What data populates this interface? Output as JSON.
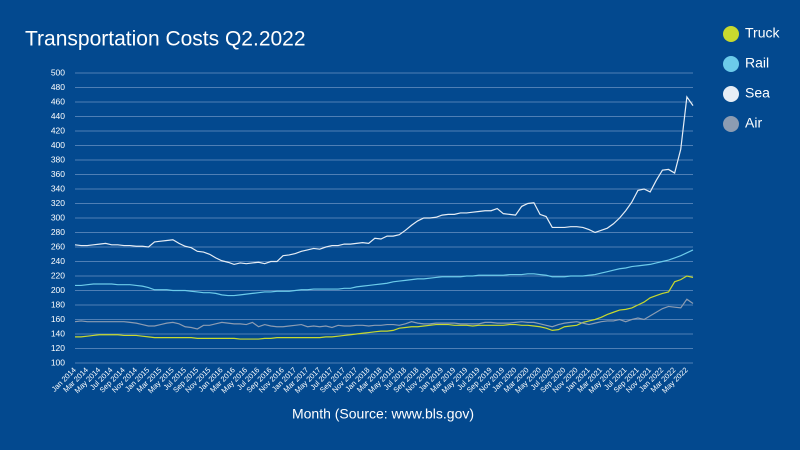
{
  "chart_data": {
    "type": "line",
    "title": "Transportation Costs Q2.2022",
    "x_label": "Month (Source: www.bls.gov)",
    "categories": [
      "Jan 2014",
      null,
      "Mar 2014",
      null,
      "May 2014",
      null,
      "Jul 2014",
      null,
      "Sep 2014",
      null,
      "Nov 2014",
      null,
      "Jan 2015",
      null,
      "Mar 2015",
      null,
      "May 2015",
      null,
      "Jul 2015",
      null,
      "Sep 2015",
      null,
      "Nov 2015",
      null,
      "Jan 2016",
      null,
      "Mar 2016",
      null,
      "May 2016",
      null,
      "Jul 2016",
      null,
      "Sep 2016",
      null,
      "Nov 2016",
      null,
      "Jan 2017",
      null,
      "Mar 2017",
      null,
      "May 2017",
      null,
      "Jul 2017",
      null,
      "Sep 2017",
      null,
      "Nov 2017",
      null,
      "Jan 2018",
      null,
      "Mar 2018",
      null,
      "May 2018",
      null,
      "Jul 2018",
      null,
      "Sep 2018",
      null,
      "Nov 2018",
      null,
      "Jan 2019",
      null,
      "Mar 2019",
      null,
      "May 2019",
      null,
      "Jul 2019",
      null,
      "Sep 2019",
      null,
      "Nov 2019",
      null,
      "Jan 2020",
      null,
      "Mar 2020",
      null,
      "May 2020",
      null,
      "Jul 2020",
      null,
      "Sep 2020",
      null,
      "Nov 2020",
      null,
      "Jan 2021",
      null,
      "Mar 2021",
      null,
      "May 2021",
      null,
      "Jul 2021",
      null,
      "Sep 2021",
      null,
      "Nov 2021",
      null,
      "Jan 2022",
      null,
      "Mar 2022",
      null,
      "May 2022",
      null
    ],
    "series": [
      {
        "name": "Truck",
        "color": "#c8d92e",
        "values": [
          136,
          136,
          137,
          138,
          139,
          139,
          139,
          139,
          138,
          138,
          138,
          137,
          136,
          135,
          135,
          135,
          135,
          135,
          135,
          135,
          134,
          134,
          134,
          134,
          134,
          134,
          134,
          133,
          133,
          133,
          133,
          134,
          134,
          135,
          135,
          135,
          135,
          135,
          135,
          135,
          135,
          136,
          136,
          137,
          138,
          139,
          140,
          141,
          142,
          143,
          144,
          144,
          145,
          148,
          149,
          150,
          150,
          151,
          152,
          153,
          153,
          153,
          152,
          152,
          152,
          151,
          152,
          152,
          152,
          152,
          152,
          153,
          153,
          152,
          152,
          151,
          150,
          148,
          145,
          146,
          150,
          151,
          152,
          156,
          158,
          160,
          163,
          167,
          170,
          173,
          174,
          176,
          180,
          184,
          190,
          193,
          196,
          198,
          212,
          215,
          220,
          218
        ]
      },
      {
        "name": "Rail",
        "color": "#6ccbea",
        "values": [
          207,
          207,
          208,
          209,
          209,
          209,
          209,
          208,
          208,
          208,
          207,
          206,
          204,
          201,
          201,
          201,
          200,
          200,
          200,
          199,
          198,
          197,
          197,
          196,
          194,
          193,
          193,
          194,
          195,
          196,
          197,
          198,
          198,
          199,
          199,
          199,
          200,
          201,
          201,
          202,
          202,
          202,
          202,
          202,
          203,
          203,
          205,
          206,
          207,
          208,
          209,
          210,
          212,
          213,
          214,
          215,
          216,
          216,
          217,
          218,
          219,
          219,
          219,
          219,
          220,
          220,
          221,
          221,
          221,
          221,
          221,
          222,
          222,
          222,
          223,
          223,
          222,
          221,
          219,
          219,
          219,
          220,
          220,
          220,
          221,
          222,
          224,
          226,
          228,
          230,
          231,
          233,
          234,
          235,
          236,
          238,
          240,
          242,
          245,
          248,
          252,
          256
        ]
      },
      {
        "name": "Sea",
        "color": "#e6edf5",
        "values": [
          263,
          262,
          262,
          263,
          264,
          265,
          263,
          263,
          262,
          262,
          261,
          261,
          260,
          267,
          268,
          269,
          270,
          265,
          261,
          259,
          254,
          253,
          250,
          245,
          241,
          239,
          236,
          238,
          237,
          238,
          239,
          237,
          240,
          240,
          248,
          249,
          251,
          254,
          256,
          258,
          257,
          260,
          262,
          262,
          264,
          264,
          265,
          266,
          265,
          272,
          271,
          275,
          275,
          277,
          283,
          290,
          296,
          300,
          300,
          301,
          304,
          305,
          305,
          307,
          307,
          308,
          309,
          310,
          310,
          313,
          306,
          305,
          304,
          316,
          320,
          321,
          305,
          302,
          287,
          287,
          287,
          288,
          288,
          287,
          284,
          280,
          283,
          286,
          292,
          300,
          310,
          322,
          338,
          340,
          336,
          352,
          366,
          367,
          362,
          395,
          467,
          455
        ]
      },
      {
        "name": "Air",
        "color": "#8c9cb2",
        "values": [
          157,
          158,
          157,
          157,
          157,
          157,
          157,
          157,
          157,
          156,
          155,
          153,
          151,
          151,
          153,
          155,
          156,
          154,
          150,
          149,
          147,
          152,
          152,
          154,
          156,
          155,
          154,
          154,
          153,
          156,
          150,
          153,
          151,
          150,
          150,
          151,
          152,
          153,
          150,
          151,
          150,
          151,
          149,
          152,
          151,
          151,
          152,
          152,
          151,
          152,
          152,
          153,
          153,
          152,
          154,
          157,
          155,
          154,
          154,
          155,
          155,
          155,
          155,
          154,
          154,
          154,
          154,
          156,
          156,
          155,
          155,
          155,
          156,
          157,
          156,
          156,
          154,
          152,
          150,
          153,
          155,
          156,
          157,
          155,
          153,
          155,
          157,
          158,
          158,
          160,
          157,
          160,
          162,
          160,
          165,
          170,
          175,
          178,
          177,
          176,
          188,
          182
        ]
      }
    ],
    "ylim": [
      100,
      500
    ],
    "yticks": [
      100,
      120,
      140,
      160,
      180,
      200,
      220,
      240,
      260,
      280,
      300,
      320,
      340,
      360,
      380,
      400,
      420,
      440,
      460,
      480,
      500
    ],
    "grid": true,
    "legend": "right"
  }
}
